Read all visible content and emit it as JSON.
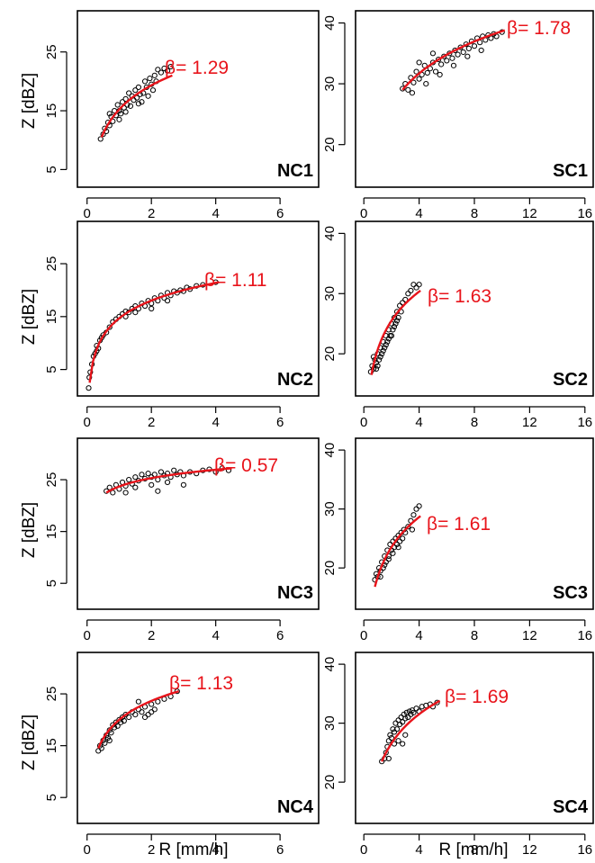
{
  "x_axis_title": "R [mm/h]",
  "y_axis_title": "Z [dBZ]",
  "colors": {
    "fit": "#e8141b",
    "points": "#000000",
    "frame": "#000000"
  },
  "chart_data": [
    {
      "type": "scatter",
      "panel": "NC1",
      "beta_text": "β= 1.29",
      "xlim": [
        -0.3,
        7.2
      ],
      "ylim": [
        2,
        32
      ],
      "xticks": [
        0,
        2,
        4,
        6
      ],
      "yticks": [
        5,
        15,
        25
      ],
      "fit": {
        "r0": 0.45,
        "r1": 2.65,
        "z0": 10.5,
        "z1": 21.0
      },
      "points": [
        [
          0.42,
          10.2
        ],
        [
          0.5,
          11.0
        ],
        [
          0.55,
          12.0
        ],
        [
          0.6,
          11.5
        ],
        [
          0.65,
          13.0
        ],
        [
          0.7,
          12.5
        ],
        [
          0.75,
          14.0
        ],
        [
          0.8,
          13.2
        ],
        [
          0.85,
          15.0
        ],
        [
          0.9,
          14.2
        ],
        [
          0.95,
          16.0
        ],
        [
          1.0,
          15.0
        ],
        [
          1.05,
          14.5
        ],
        [
          1.1,
          16.5
        ],
        [
          1.15,
          15.5
        ],
        [
          1.2,
          17.0
        ],
        [
          1.25,
          16.0
        ],
        [
          1.3,
          18.0
        ],
        [
          1.35,
          15.8
        ],
        [
          1.4,
          17.5
        ],
        [
          1.45,
          16.8
        ],
        [
          1.5,
          18.5
        ],
        [
          1.55,
          17.2
        ],
        [
          1.6,
          19.0
        ],
        [
          1.65,
          17.8
        ],
        [
          1.7,
          16.5
        ],
        [
          1.75,
          18.0
        ],
        [
          1.8,
          20.0
        ],
        [
          1.85,
          19.0
        ],
        [
          1.9,
          17.5
        ],
        [
          1.95,
          20.5
        ],
        [
          2.0,
          19.5
        ],
        [
          2.05,
          18.5
        ],
        [
          2.1,
          21.0
        ],
        [
          2.15,
          20.0
        ],
        [
          2.2,
          22.0
        ],
        [
          2.3,
          21.5
        ],
        [
          2.4,
          22.2
        ],
        [
          2.5,
          21.8
        ],
        [
          2.6,
          22.5
        ],
        [
          1.0,
          13.5
        ],
        [
          1.2,
          14.8
        ],
        [
          0.7,
          14.5
        ],
        [
          1.6,
          16.2
        ]
      ]
    },
    {
      "type": "scatter",
      "panel": "SC1",
      "beta_text": "β= 1.78",
      "xlim": [
        -0.6,
        16.6
      ],
      "ylim": [
        13,
        42
      ],
      "xticks": [
        0,
        4,
        8,
        12,
        16
      ],
      "yticks": [
        20,
        30,
        40
      ],
      "fit": {
        "r0": 2.8,
        "r1": 10.2,
        "z0": 29.0,
        "z1": 38.8
      },
      "points": [
        [
          2.8,
          29.2
        ],
        [
          3.0,
          30.0
        ],
        [
          3.2,
          29.0
        ],
        [
          3.4,
          31.0
        ],
        [
          3.6,
          30.2
        ],
        [
          3.8,
          32.0
        ],
        [
          4.0,
          30.8
        ],
        [
          4.2,
          31.5
        ],
        [
          4.4,
          33.0
        ],
        [
          4.6,
          31.8
        ],
        [
          4.8,
          32.5
        ],
        [
          5.0,
          33.5
        ],
        [
          5.2,
          32.0
        ],
        [
          5.4,
          34.0
        ],
        [
          5.6,
          33.2
        ],
        [
          5.8,
          34.5
        ],
        [
          6.0,
          33.8
        ],
        [
          6.2,
          35.0
        ],
        [
          6.4,
          34.2
        ],
        [
          6.6,
          35.5
        ],
        [
          6.8,
          34.8
        ],
        [
          7.0,
          36.0
        ],
        [
          7.2,
          35.2
        ],
        [
          7.4,
          36.5
        ],
        [
          7.6,
          35.8
        ],
        [
          7.8,
          37.0
        ],
        [
          8.0,
          36.2
        ],
        [
          8.2,
          37.5
        ],
        [
          8.4,
          36.8
        ],
        [
          8.6,
          37.8
        ],
        [
          8.8,
          37.2
        ],
        [
          9.0,
          38.0
        ],
        [
          9.2,
          37.5
        ],
        [
          9.4,
          38.2
        ],
        [
          9.6,
          37.8
        ],
        [
          10.0,
          38.5
        ],
        [
          3.5,
          28.5
        ],
        [
          4.5,
          30.0
        ],
        [
          5.5,
          31.5
        ],
        [
          6.5,
          33.0
        ],
        [
          7.5,
          34.5
        ],
        [
          8.5,
          35.5
        ],
        [
          4.0,
          33.5
        ],
        [
          5.0,
          35.0
        ]
      ]
    },
    {
      "type": "scatter",
      "panel": "NC2",
      "beta_text": "β= 1.11",
      "xlim": [
        -0.3,
        7.2
      ],
      "ylim": [
        0,
        33
      ],
      "xticks": [
        0,
        2,
        4,
        6
      ],
      "yticks": [
        5,
        15,
        25
      ],
      "fit": {
        "r0": 0.08,
        "r1": 4.1,
        "z0": 2.5,
        "z1": 21.5
      },
      "points": [
        [
          0.05,
          1.5
        ],
        [
          0.07,
          3.5
        ],
        [
          0.1,
          4.5
        ],
        [
          0.15,
          6.0
        ],
        [
          0.2,
          7.5
        ],
        [
          0.25,
          8.0
        ],
        [
          0.3,
          9.5
        ],
        [
          0.35,
          9.0
        ],
        [
          0.4,
          10.5
        ],
        [
          0.45,
          11.0
        ],
        [
          0.5,
          11.5
        ],
        [
          0.6,
          12.0
        ],
        [
          0.7,
          13.0
        ],
        [
          0.8,
          14.0
        ],
        [
          0.9,
          14.5
        ],
        [
          1.0,
          15.0
        ],
        [
          1.1,
          15.5
        ],
        [
          1.2,
          16.0
        ],
        [
          1.3,
          15.8
        ],
        [
          1.4,
          16.5
        ],
        [
          1.5,
          17.0
        ],
        [
          1.6,
          16.5
        ],
        [
          1.7,
          17.5
        ],
        [
          1.8,
          17.0
        ],
        [
          1.9,
          18.0
        ],
        [
          2.0,
          17.5
        ],
        [
          2.1,
          18.5
        ],
        [
          2.2,
          18.0
        ],
        [
          2.3,
          19.0
        ],
        [
          2.4,
          18.5
        ],
        [
          2.5,
          19.5
        ],
        [
          2.6,
          19.0
        ],
        [
          2.7,
          19.8
        ],
        [
          2.8,
          19.5
        ],
        [
          2.9,
          20.0
        ],
        [
          3.0,
          19.8
        ],
        [
          3.1,
          20.5
        ],
        [
          3.2,
          20.2
        ],
        [
          3.4,
          20.8
        ],
        [
          3.6,
          21.0
        ],
        [
          4.0,
          21.5
        ],
        [
          1.2,
          15.0
        ],
        [
          1.5,
          15.8
        ],
        [
          2.0,
          16.5
        ],
        [
          2.5,
          18.0
        ],
        [
          0.3,
          8.5
        ]
      ]
    },
    {
      "type": "scatter",
      "panel": "SC2",
      "beta_text": "β= 1.63",
      "xlim": [
        -0.6,
        16.6
      ],
      "ylim": [
        13,
        42
      ],
      "xticks": [
        0,
        4,
        8,
        12,
        16
      ],
      "yticks": [
        20,
        30,
        40
      ],
      "fit": {
        "r0": 0.55,
        "r1": 4.1,
        "z0": 16.5,
        "z1": 30.5
      },
      "points": [
        [
          0.5,
          17.0
        ],
        [
          0.6,
          18.0
        ],
        [
          0.7,
          17.5
        ],
        [
          0.8,
          19.0
        ],
        [
          0.9,
          18.5
        ],
        [
          1.0,
          20.0
        ],
        [
          1.1,
          19.0
        ],
        [
          1.2,
          21.0
        ],
        [
          1.3,
          20.0
        ],
        [
          1.4,
          22.0
        ],
        [
          1.5,
          21.0
        ],
        [
          1.6,
          23.0
        ],
        [
          1.7,
          22.0
        ],
        [
          1.8,
          24.0
        ],
        [
          1.9,
          23.0
        ],
        [
          2.0,
          25.0
        ],
        [
          2.1,
          24.0
        ],
        [
          2.2,
          26.0
        ],
        [
          2.3,
          25.0
        ],
        [
          2.4,
          27.0
        ],
        [
          2.5,
          26.0
        ],
        [
          2.6,
          28.0
        ],
        [
          2.7,
          27.0
        ],
        [
          2.8,
          28.5
        ],
        [
          3.0,
          29.0
        ],
        [
          3.2,
          30.0
        ],
        [
          3.4,
          30.5
        ],
        [
          3.6,
          31.5
        ],
        [
          3.8,
          31.0
        ],
        [
          4.0,
          31.5
        ],
        [
          1.0,
          18.0
        ],
        [
          1.2,
          19.5
        ],
        [
          1.4,
          20.5
        ],
        [
          1.6,
          21.5
        ],
        [
          1.8,
          22.5
        ],
        [
          2.0,
          23.0
        ],
        [
          2.2,
          24.5
        ],
        [
          2.4,
          25.5
        ],
        [
          0.7,
          19.5
        ],
        [
          0.9,
          17.5
        ]
      ]
    },
    {
      "type": "scatter",
      "panel": "NC3",
      "beta_text": "β= 0.57",
      "xlim": [
        -0.3,
        7.2
      ],
      "ylim": [
        0,
        33
      ],
      "xticks": [
        0,
        2,
        4,
        6
      ],
      "yticks": [
        5,
        15,
        25
      ],
      "fit": {
        "r0": 0.6,
        "r1": 4.5,
        "z0": 22.5,
        "z1": 27.2
      },
      "points": [
        [
          0.6,
          22.8
        ],
        [
          0.7,
          23.5
        ],
        [
          0.8,
          22.5
        ],
        [
          0.9,
          24.0
        ],
        [
          1.0,
          23.2
        ],
        [
          1.1,
          24.5
        ],
        [
          1.2,
          23.8
        ],
        [
          1.3,
          25.0
        ],
        [
          1.4,
          24.2
        ],
        [
          1.5,
          25.5
        ],
        [
          1.6,
          24.8
        ],
        [
          1.7,
          26.0
        ],
        [
          1.8,
          25.2
        ],
        [
          1.9,
          26.2
        ],
        [
          2.0,
          25.5
        ],
        [
          2.1,
          26.0
        ],
        [
          2.2,
          25.0
        ],
        [
          2.3,
          26.5
        ],
        [
          2.4,
          25.8
        ],
        [
          2.5,
          26.2
        ],
        [
          2.6,
          25.5
        ],
        [
          2.7,
          26.8
        ],
        [
          2.8,
          26.0
        ],
        [
          2.9,
          26.5
        ],
        [
          3.0,
          25.8
        ],
        [
          3.2,
          26.5
        ],
        [
          3.4,
          26.2
        ],
        [
          3.6,
          26.8
        ],
        [
          3.8,
          27.0
        ],
        [
          4.0,
          26.5
        ],
        [
          4.2,
          27.2
        ],
        [
          4.4,
          26.8
        ],
        [
          1.5,
          23.5
        ],
        [
          2.0,
          24.0
        ],
        [
          2.5,
          24.5
        ],
        [
          3.0,
          24.0
        ],
        [
          2.2,
          22.8
        ],
        [
          1.2,
          22.5
        ]
      ]
    },
    {
      "type": "scatter",
      "panel": "SC3",
      "beta_text": "β= 1.61",
      "xlim": [
        -0.6,
        16.6
      ],
      "ylim": [
        13,
        42
      ],
      "xticks": [
        0,
        4,
        8,
        12,
        16
      ],
      "yticks": [
        20,
        30,
        40
      ],
      "fit": {
        "r0": 0.8,
        "r1": 4.1,
        "z0": 16.8,
        "z1": 28.8
      },
      "points": [
        [
          0.8,
          18.0
        ],
        [
          0.9,
          19.0
        ],
        [
          1.0,
          18.5
        ],
        [
          1.1,
          20.0
        ],
        [
          1.2,
          19.5
        ],
        [
          1.3,
          21.0
        ],
        [
          1.4,
          20.0
        ],
        [
          1.5,
          22.0
        ],
        [
          1.6,
          21.0
        ],
        [
          1.7,
          23.0
        ],
        [
          1.8,
          22.0
        ],
        [
          1.9,
          24.0
        ],
        [
          2.0,
          23.0
        ],
        [
          2.1,
          24.5
        ],
        [
          2.2,
          23.5
        ],
        [
          2.3,
          25.0
        ],
        [
          2.4,
          24.0
        ],
        [
          2.5,
          25.5
        ],
        [
          2.6,
          24.5
        ],
        [
          2.7,
          26.0
        ],
        [
          2.8,
          25.0
        ],
        [
          2.9,
          26.5
        ],
        [
          3.0,
          26.0
        ],
        [
          3.2,
          27.0
        ],
        [
          3.4,
          28.0
        ],
        [
          3.6,
          29.0
        ],
        [
          3.8,
          30.0
        ],
        [
          4.0,
          30.5
        ],
        [
          3.5,
          26.5
        ],
        [
          1.2,
          18.5
        ],
        [
          1.5,
          20.5
        ],
        [
          1.8,
          21.5
        ],
        [
          2.1,
          22.5
        ],
        [
          2.5,
          23.5
        ]
      ]
    },
    {
      "type": "scatter",
      "panel": "NC4",
      "beta_text": "β= 1.13",
      "xlim": [
        -0.3,
        7.2
      ],
      "ylim": [
        0,
        33
      ],
      "xticks": [
        0,
        2,
        4,
        6
      ],
      "yticks": [
        5,
        15,
        25
      ],
      "fit": {
        "r0": 0.35,
        "r1": 2.85,
        "z0": 14.5,
        "z1": 25.5
      },
      "points": [
        [
          0.35,
          14.0
        ],
        [
          0.4,
          15.0
        ],
        [
          0.45,
          14.5
        ],
        [
          0.5,
          16.0
        ],
        [
          0.55,
          15.5
        ],
        [
          0.6,
          17.0
        ],
        [
          0.65,
          16.5
        ],
        [
          0.7,
          18.0
        ],
        [
          0.75,
          17.5
        ],
        [
          0.8,
          19.0
        ],
        [
          0.85,
          18.5
        ],
        [
          0.9,
          19.5
        ],
        [
          0.95,
          18.8
        ],
        [
          1.0,
          20.0
        ],
        [
          1.05,
          19.5
        ],
        [
          1.1,
          20.5
        ],
        [
          1.15,
          19.8
        ],
        [
          1.2,
          21.0
        ],
        [
          1.3,
          20.5
        ],
        [
          1.4,
          21.5
        ],
        [
          1.5,
          21.0
        ],
        [
          1.6,
          22.0
        ],
        [
          1.7,
          21.5
        ],
        [
          1.8,
          22.5
        ],
        [
          1.9,
          21.0
        ],
        [
          2.0,
          23.0
        ],
        [
          2.1,
          22.0
        ],
        [
          2.2,
          23.5
        ],
        [
          2.4,
          24.0
        ],
        [
          2.6,
          24.5
        ],
        [
          2.8,
          25.5
        ],
        [
          1.8,
          20.5
        ],
        [
          2.0,
          21.5
        ],
        [
          1.6,
          23.5
        ],
        [
          0.7,
          16.0
        ]
      ]
    },
    {
      "type": "scatter",
      "panel": "SC4",
      "beta_text": "β= 1.69",
      "xlim": [
        -0.6,
        16.6
      ],
      "ylim": [
        13,
        42
      ],
      "xticks": [
        0,
        4,
        8,
        12,
        16
      ],
      "yticks": [
        20,
        30,
        40
      ],
      "fit": {
        "r0": 1.3,
        "r1": 5.5,
        "z0": 23.5,
        "z1": 33.8
      },
      "points": [
        [
          1.3,
          23.5
        ],
        [
          1.5,
          24.0
        ],
        [
          1.6,
          25.0
        ],
        [
          1.7,
          26.0
        ],
        [
          1.8,
          27.0
        ],
        [
          1.9,
          28.0
        ],
        [
          2.0,
          27.5
        ],
        [
          2.1,
          29.0
        ],
        [
          2.2,
          28.5
        ],
        [
          2.3,
          30.0
        ],
        [
          2.4,
          29.0
        ],
        [
          2.5,
          30.5
        ],
        [
          2.6,
          29.8
        ],
        [
          2.7,
          31.0
        ],
        [
          2.8,
          30.2
        ],
        [
          2.9,
          31.5
        ],
        [
          3.0,
          30.8
        ],
        [
          3.1,
          31.8
        ],
        [
          3.2,
          31.0
        ],
        [
          3.3,
          32.0
        ],
        [
          3.4,
          31.5
        ],
        [
          3.5,
          32.2
        ],
        [
          3.6,
          31.8
        ],
        [
          3.8,
          32.5
        ],
        [
          4.0,
          32.0
        ],
        [
          4.2,
          32.8
        ],
        [
          4.5,
          33.0
        ],
        [
          4.8,
          33.2
        ],
        [
          5.0,
          32.8
        ],
        [
          5.3,
          33.5
        ],
        [
          2.5,
          27.0
        ],
        [
          2.8,
          26.5
        ],
        [
          3.0,
          28.0
        ],
        [
          2.2,
          26.5
        ],
        [
          1.8,
          24.0
        ]
      ]
    }
  ]
}
